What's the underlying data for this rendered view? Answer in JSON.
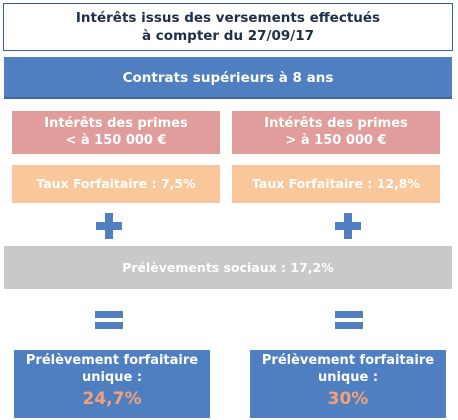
{
  "title": {
    "line1": "Intérêts issus des versements effectués",
    "line2": "à compter du 27/09/17"
  },
  "header_bar": "Contrats supérieurs à 8 ans",
  "columns": [
    {
      "interest_line1": "Intérêts des primes",
      "interest_line2": "< à 150 000 €",
      "rate": "Taux Forfaitaire : 7,5%",
      "result_line1": "Prélèvement forfaitaire",
      "result_line2": "unique :",
      "result_value": "24,7%"
    },
    {
      "interest_line1": "Intérêts des primes",
      "interest_line2": "> à 150 000 €",
      "rate": "Taux Forfaitaire : 12,8%",
      "result_line1": "Prélèvement forfaitaire",
      "result_line2": "unique :",
      "result_value": "30%"
    }
  ],
  "social": "Prélèvements sociaux : 17,2%",
  "colors": {
    "blue": "#4f7fc0",
    "pink": "#e09d9c",
    "orange": "#f9c79a",
    "grey": "#c9c9c9",
    "result_value": "#f4a17a"
  }
}
